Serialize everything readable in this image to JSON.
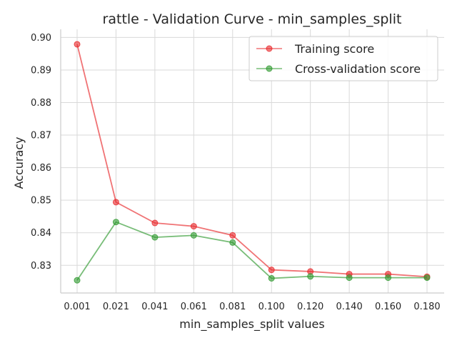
{
  "chart_data": {
    "type": "line",
    "title": "rattle - Validation Curve - min_samples_split",
    "xlabel": "min_samples_split values",
    "ylabel": "Accuracy",
    "categories": [
      "0.001",
      "0.021",
      "0.041",
      "0.061",
      "0.081",
      "0.100",
      "0.120",
      "0.140",
      "0.160",
      "0.180"
    ],
    "yticks": [
      "0.83",
      "0.84",
      "0.85",
      "0.86",
      "0.87",
      "0.88",
      "0.89",
      "0.90"
    ],
    "ylim": [
      0.8215,
      0.9025
    ],
    "grid": true,
    "legend_position": "top-right",
    "series": [
      {
        "name": "Training score",
        "color": "#e8282b",
        "values": [
          0.8979,
          0.8494,
          0.843,
          0.842,
          0.8392,
          0.8286,
          0.8281,
          0.8273,
          0.8273,
          0.8265
        ]
      },
      {
        "name": "Cross-validation score",
        "color": "#2f9a2f",
        "values": [
          0.8254,
          0.8433,
          0.8386,
          0.8392,
          0.837,
          0.826,
          0.8266,
          0.8262,
          0.8262,
          0.8262
        ]
      }
    ]
  }
}
